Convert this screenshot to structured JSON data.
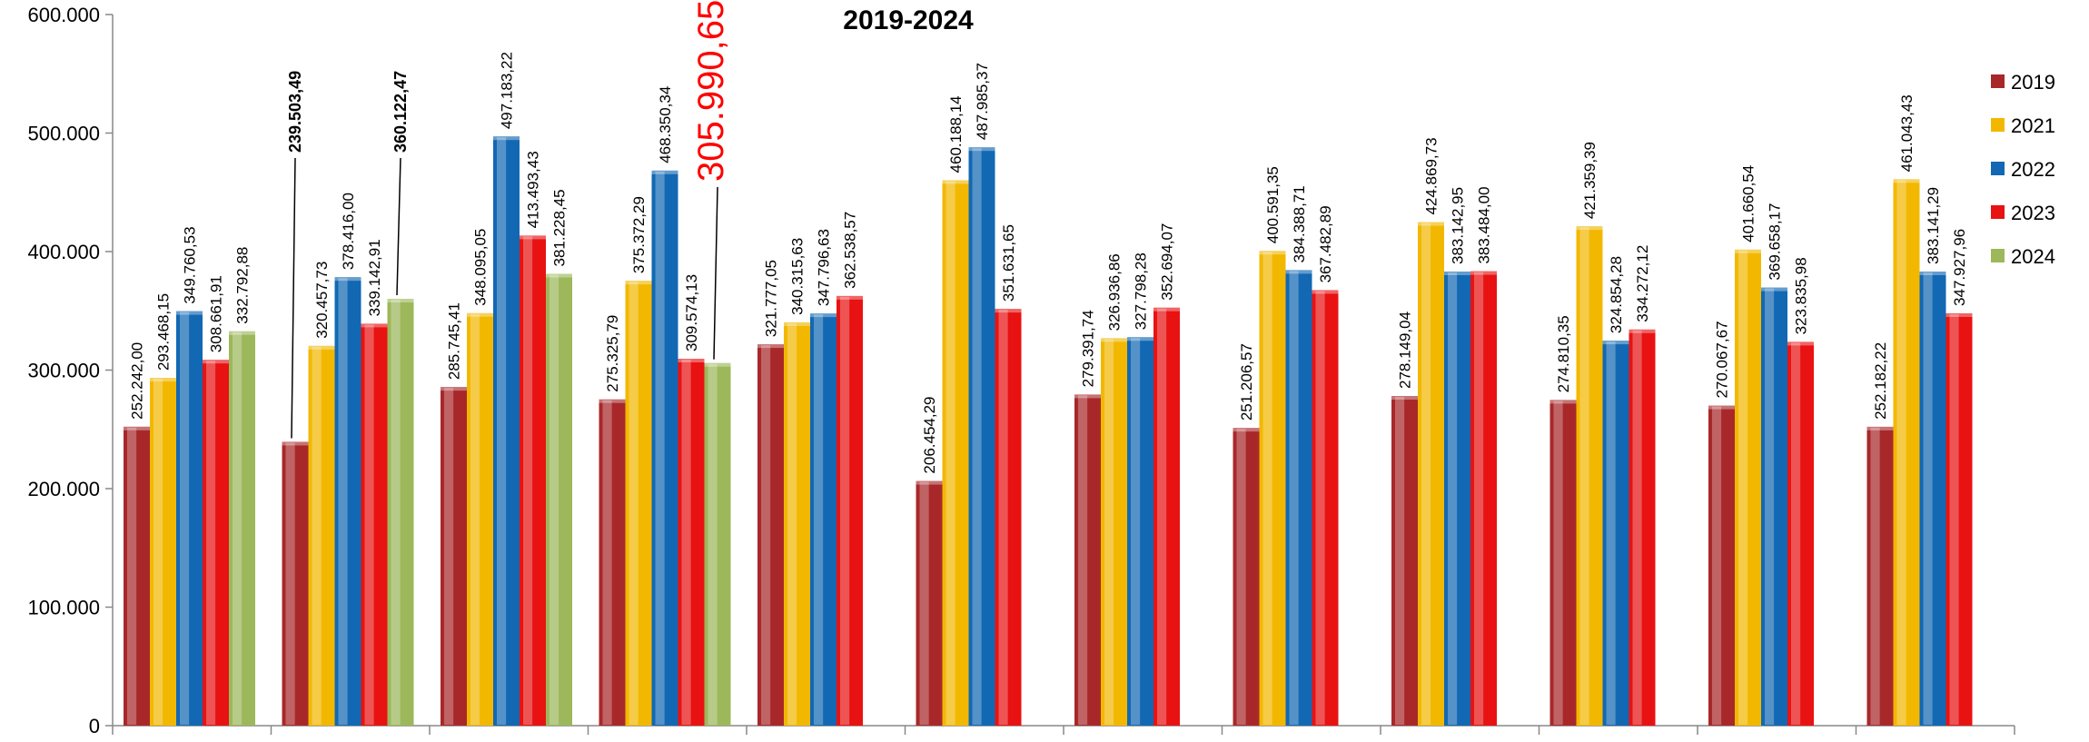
{
  "chart_data": {
    "type": "bar",
    "title": "2019-2024",
    "xlabel": "",
    "ylabel": "",
    "ylim": [
      0,
      600000
    ],
    "yticks": [
      "0",
      "100.000",
      "200.000",
      "300.000",
      "400.000",
      "500.000",
      "600.000"
    ],
    "yticks_values": [
      0,
      100000,
      200000,
      300000,
      400000,
      500000,
      600000
    ],
    "grid": false,
    "legend_position": "right",
    "group_count": 12,
    "colors": {
      "2019": "#a8282a",
      "2021": "#f2b800",
      "2022": "#1268b3",
      "2023": "#e81212",
      "2024": "#9cb85a"
    },
    "series": [
      {
        "name": "2019",
        "values": [
          252242.0,
          239503.49,
          285745.41,
          275325.79,
          321777.05,
          206454.29,
          279391.74,
          251206.57,
          278149.04,
          274810.35,
          270067.67,
          252182.22
        ],
        "labels": [
          "252.242,00",
          "239.503,49",
          "285.745,41",
          "275.325,79",
          "321.777,05",
          "206.454,29",
          "279.391,74",
          "251.206,57",
          "278.149,04",
          "274.810,35",
          "270.067,67",
          "252.182,22"
        ]
      },
      {
        "name": "2021",
        "values": [
          293468.15,
          320457.73,
          348095.05,
          375372.29,
          340315.63,
          460188.14,
          326936.86,
          400591.35,
          424869.73,
          421359.39,
          401660.54,
          461043.43
        ],
        "labels": [
          "293.468,15",
          "320.457,73",
          "348.095,05",
          "375.372,29",
          "340.315,63",
          "460.188,14",
          "326.936,86",
          "400.591,35",
          "424.869,73",
          "421.359,39",
          "401.660,54",
          "461.043,43"
        ]
      },
      {
        "name": "2022",
        "values": [
          349760.53,
          378416.0,
          497183.22,
          468350.34,
          347796.63,
          487985.37,
          327798.28,
          384388.71,
          383142.95,
          324854.28,
          369658.17,
          383141.29
        ],
        "labels": [
          "349.760,53",
          "378.416,00",
          "497.183,22",
          "468.350,34",
          "347.796,63",
          "487.985,37",
          "327.798,28",
          "384.388,71",
          "383.142,95",
          "324.854,28",
          "369.658,17",
          "383.141,29"
        ]
      },
      {
        "name": "2023",
        "values": [
          308661.91,
          339142.91,
          413493.43,
          309574.13,
          362538.57,
          351631.65,
          352694.07,
          367482.89,
          383484.0,
          334272.12,
          323835.98,
          347927.96
        ],
        "labels": [
          "308.661,91",
          "339.142,91",
          "413.493,43",
          "309.574,13",
          "362.538,57",
          "351.631,65",
          "352.694,07",
          "367.482,89",
          "383.484,00",
          "334.272,12",
          "323.835,98",
          "347.927,96"
        ]
      },
      {
        "name": "2024",
        "values": [
          332792.88,
          360122.47,
          381228.45,
          305990.65,
          null,
          null,
          null,
          null,
          null,
          null,
          null,
          null
        ],
        "labels": [
          "332.792,88",
          "360.122,47",
          "381.228,45",
          "305.990,65",
          null,
          null,
          null,
          null,
          null,
          null,
          null,
          null
        ]
      }
    ],
    "highlighted_labels": [
      {
        "series": "2019",
        "group": 1,
        "style": "bold",
        "leader_line": true
      },
      {
        "series": "2024",
        "group": 1,
        "style": "bold",
        "leader_line": true
      },
      {
        "series": "2024",
        "group": 3,
        "style": "large-red",
        "leader_line": true
      }
    ]
  }
}
